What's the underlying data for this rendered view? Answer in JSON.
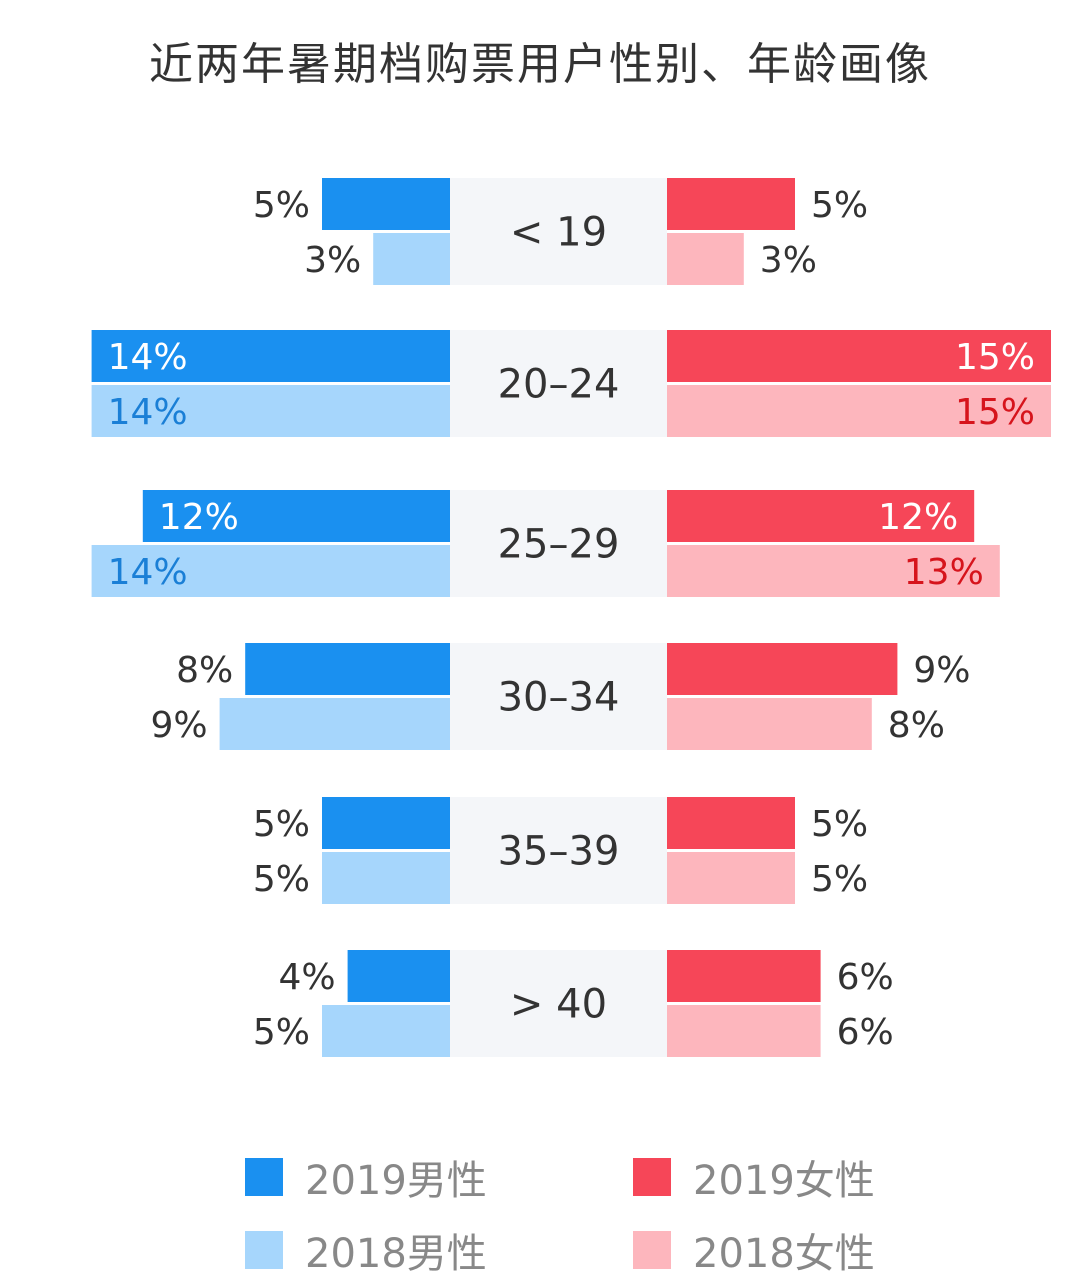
{
  "title": "近两年暑期档购票用户性别、年龄画像",
  "colors": {
    "male_2019": "#1a90f0",
    "male_2018": "#a6d6fc",
    "female_2019": "#f64658",
    "female_2018": "#fdb6bd",
    "center_band": "#f4f6f9",
    "label_dark": "#333333",
    "label_blue_on_light": "#1a7fd6",
    "label_red_on_light": "#d6141c"
  },
  "legend": [
    {
      "label": "2019男性",
      "color_key": "male_2019"
    },
    {
      "label": "2019女性",
      "color_key": "female_2019"
    },
    {
      "label": "2018男性",
      "color_key": "male_2018"
    },
    {
      "label": "2018女性",
      "color_key": "female_2018"
    }
  ],
  "chart_data": {
    "type": "bar",
    "layout": "butterfly",
    "title": "近两年暑期档购票用户性别、年龄画像",
    "categories": [
      "< 19",
      "20–24",
      "25–29",
      "30–34",
      "35–39",
      "> 40"
    ],
    "unit": "%",
    "series": [
      {
        "name": "2019男性",
        "side": "left",
        "values": [
          5,
          14,
          12,
          8,
          5,
          4
        ]
      },
      {
        "name": "2018男性",
        "side": "left",
        "values": [
          3,
          14,
          14,
          9,
          5,
          5
        ]
      },
      {
        "name": "2019女性",
        "side": "right",
        "values": [
          5,
          15,
          12,
          9,
          5,
          6
        ]
      },
      {
        "name": "2018女性",
        "side": "right",
        "values": [
          3,
          15,
          13,
          8,
          5,
          6
        ]
      }
    ],
    "grid": false,
    "legend_position": "bottom"
  }
}
